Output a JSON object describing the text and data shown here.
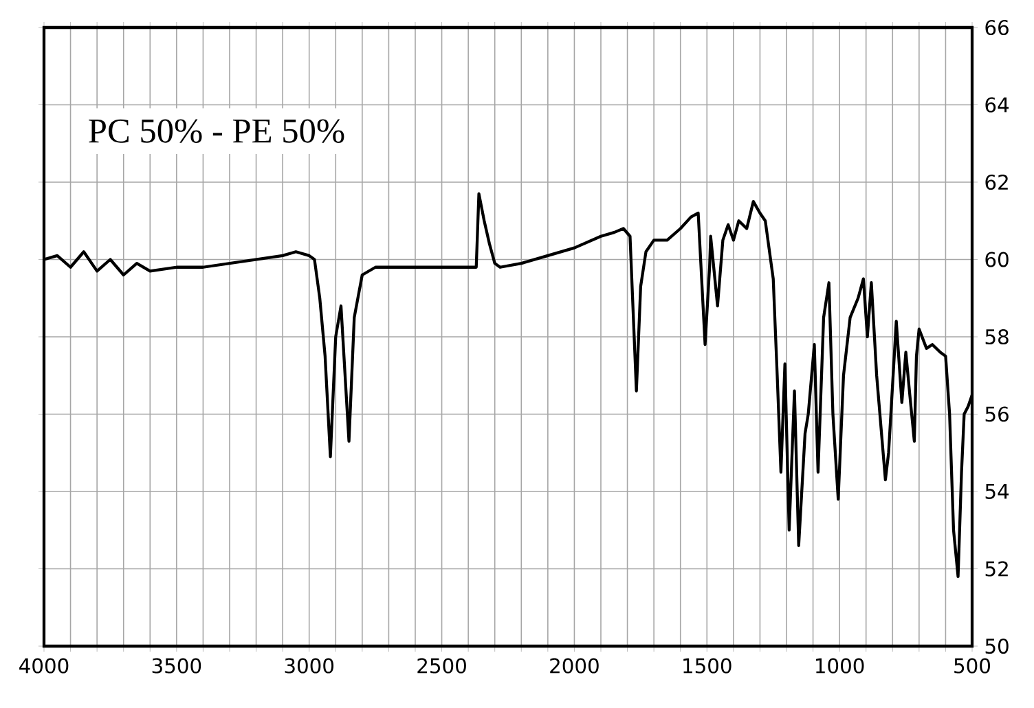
{
  "chart_data": {
    "type": "line",
    "annotations": [
      "PC 50% - PE 50%"
    ],
    "x": [
      4000,
      3950,
      3900,
      3850,
      3800,
      3750,
      3700,
      3650,
      3600,
      3500,
      3400,
      3300,
      3200,
      3100,
      3050,
      3000,
      2980,
      2960,
      2940,
      2920,
      2900,
      2880,
      2850,
      2830,
      2800,
      2750,
      2700,
      2500,
      2370,
      2360,
      2340,
      2320,
      2300,
      2280,
      2200,
      2100,
      2000,
      1900,
      1850,
      1815,
      1790,
      1766,
      1750,
      1730,
      1700,
      1650,
      1600,
      1560,
      1533,
      1507,
      1490,
      1486,
      1460,
      1440,
      1420,
      1400,
      1380,
      1350,
      1325,
      1300,
      1280,
      1250,
      1235,
      1221,
      1206,
      1190,
      1170,
      1154,
      1130,
      1118,
      1095,
      1081,
      1060,
      1040,
      1025,
      1005,
      985,
      960,
      930,
      910,
      895,
      880,
      860,
      827,
      815,
      786,
      765,
      750,
      735,
      718,
      710,
      700,
      672,
      650,
      620,
      600,
      585,
      570,
      553,
      540,
      530,
      515,
      500
    ],
    "series": [
      {
        "color": "#000000",
        "values": [
          60.0,
          60.1,
          59.8,
          60.2,
          59.7,
          60.0,
          59.6,
          59.9,
          59.7,
          59.8,
          59.8,
          59.9,
          60.0,
          60.1,
          60.2,
          60.1,
          60.0,
          59.0,
          57.5,
          54.9,
          58.0,
          58.8,
          55.3,
          58.5,
          59.6,
          59.8,
          59.8,
          59.8,
          59.8,
          61.7,
          61.0,
          60.4,
          59.9,
          59.8,
          59.9,
          60.1,
          60.3,
          60.6,
          60.7,
          60.8,
          60.6,
          56.6,
          59.3,
          60.2,
          60.5,
          60.5,
          60.8,
          61.1,
          61.2,
          57.8,
          59.8,
          60.6,
          58.8,
          60.5,
          60.9,
          60.5,
          61.0,
          60.8,
          61.5,
          61.2,
          61.0,
          59.5,
          57.0,
          54.5,
          57.3,
          53.0,
          56.6,
          52.6,
          55.5,
          56.0,
          57.8,
          54.5,
          58.5,
          59.4,
          56.0,
          53.8,
          57.0,
          58.5,
          59.0,
          59.5,
          58.0,
          59.4,
          57.0,
          54.3,
          55.0,
          58.4,
          56.3,
          57.6,
          56.5,
          55.3,
          57.5,
          58.2,
          57.7,
          57.8,
          57.6,
          57.5,
          56.0,
          53.0,
          51.8,
          54.5,
          56.0,
          56.2,
          56.5
        ]
      }
    ],
    "xlim": [
      4000,
      500
    ],
    "xticks": [
      4000,
      {
        "value": 3900,
        "label": null
      },
      {
        "value": 3800,
        "label": null
      },
      {
        "value": 3700,
        "label": null
      },
      {
        "value": 3600,
        "label": null
      },
      3500,
      {
        "value": 3400,
        "label": null
      },
      {
        "value": 3300,
        "label": null
      },
      {
        "value": 3200,
        "label": null
      },
      {
        "value": 3100,
        "label": null
      },
      3000,
      {
        "value": 2900,
        "label": null
      },
      {
        "value": 2800,
        "label": null
      },
      {
        "value": 2700,
        "label": null
      },
      {
        "value": 2600,
        "label": null
      },
      2500,
      {
        "value": 2400,
        "label": null
      },
      {
        "value": 2300,
        "label": null
      },
      {
        "value": 2200,
        "label": null
      },
      {
        "value": 2100,
        "label": null
      },
      2000,
      {
        "value": 1900,
        "label": null
      },
      {
        "value": 1800,
        "label": null
      },
      {
        "value": 1700,
        "label": null
      },
      {
        "value": 1600,
        "label": null
      },
      1500,
      {
        "value": 1400,
        "label": null
      },
      {
        "value": 1300,
        "label": null
      },
      {
        "value": 1200,
        "label": null
      },
      {
        "value": 1100,
        "label": null
      },
      1000,
      {
        "value": 900,
        "label": null
      },
      {
        "value": 800,
        "label": null
      },
      {
        "value": 700,
        "label": null
      },
      {
        "value": 600,
        "label": null
      },
      500
    ],
    "ylim": [
      50,
      66
    ],
    "yticks": [
      50,
      52,
      54,
      56,
      58,
      60,
      62,
      64,
      66
    ],
    "grid": true,
    "marker": "none",
    "line_style": "solid"
  }
}
